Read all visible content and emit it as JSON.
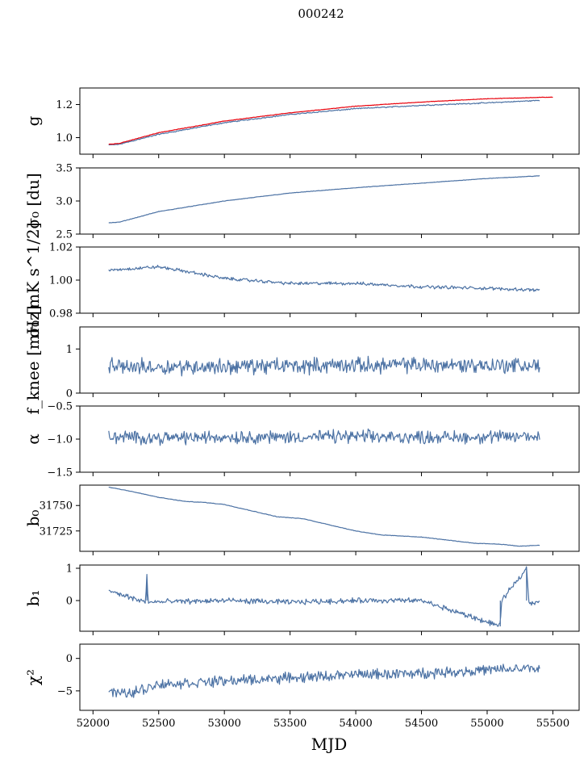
{
  "figure": {
    "title": "000242",
    "xlabel": "MJD"
  },
  "colors": {
    "blue": "#4c72a4",
    "red": "#e8000b"
  },
  "chart_data": [
    {
      "type": "line",
      "ylabel": "g",
      "ylim": [
        0.9,
        1.3
      ],
      "xlim": [
        51900,
        55700
      ],
      "yticks": [
        1.0,
        1.2
      ],
      "ytick_labels": [
        "1.0",
        "1.2"
      ],
      "xticks": [
        52000,
        52500,
        53000,
        53500,
        54000,
        54500,
        55000,
        55500
      ],
      "series": [
        {
          "color": "#4c72a4",
          "x": [
            52120,
            52200,
            52500,
            53000,
            53500,
            54000,
            54500,
            55000,
            55400
          ],
          "y": [
            0.955,
            0.96,
            1.02,
            1.09,
            1.14,
            1.175,
            1.195,
            1.21,
            1.225
          ]
        },
        {
          "color": "#e8000b",
          "x": [
            52120,
            52200,
            52500,
            53000,
            53500,
            54000,
            54500,
            55000,
            55500
          ],
          "y": [
            0.96,
            0.965,
            1.03,
            1.1,
            1.15,
            1.19,
            1.215,
            1.235,
            1.245
          ]
        }
      ]
    },
    {
      "type": "line",
      "ylabel": "σ₀ [du]",
      "ylim": [
        2.5,
        3.5
      ],
      "xlim": [
        51900,
        55700
      ],
      "yticks": [
        2.5,
        3.0,
        3.5
      ],
      "ytick_labels": [
        "2.5",
        "3.0",
        "3.5"
      ],
      "xticks": [
        52000,
        52500,
        53000,
        53500,
        54000,
        54500,
        55000,
        55500
      ],
      "series": [
        {
          "color": "#4c72a4",
          "x": [
            52120,
            52200,
            52500,
            53000,
            53500,
            54000,
            54500,
            55000,
            55400
          ],
          "y": [
            2.67,
            2.68,
            2.84,
            3.0,
            3.12,
            3.2,
            3.27,
            3.34,
            3.38
          ]
        }
      ]
    },
    {
      "type": "line",
      "ylabel": "σ₀ [mK s^1/2]",
      "ylim": [
        0.98,
        1.02
      ],
      "xlim": [
        51900,
        55700
      ],
      "yticks": [
        0.98,
        1.0,
        1.02
      ],
      "ytick_labels": [
        "0.98",
        "1.00",
        "1.02"
      ],
      "xticks": [
        52000,
        52500,
        53000,
        53500,
        54000,
        54500,
        55000,
        55500
      ],
      "series": [
        {
          "color": "#4c72a4",
          "x": [
            52120,
            52500,
            52800,
            53000,
            53500,
            54000,
            54500,
            55000,
            55400
          ],
          "y": [
            1.006,
            1.008,
            1.004,
            1.001,
            0.998,
            0.998,
            0.996,
            0.995,
            0.994
          ]
        }
      ]
    },
    {
      "type": "line",
      "ylabel": "f_knee [mHz]",
      "ylim": [
        0,
        1.5
      ],
      "xlim": [
        51900,
        55700
      ],
      "yticks": [
        0,
        1
      ],
      "ytick_labels": [
        "0",
        "1"
      ],
      "xticks": [
        52000,
        52500,
        53000,
        53500,
        54000,
        54500,
        55000,
        55500
      ],
      "series": [
        {
          "color": "#4c72a4",
          "x": [
            52120,
            52500,
            53000,
            53500,
            54000,
            54500,
            55000,
            55400
          ],
          "y": [
            0.6,
            0.6,
            0.6,
            0.62,
            0.63,
            0.64,
            0.63,
            0.62
          ]
        }
      ]
    },
    {
      "type": "line",
      "ylabel": "α",
      "ylim": [
        -1.5,
        -0.5
      ],
      "xlim": [
        51900,
        55700
      ],
      "yticks": [
        -1.5,
        -1.0,
        -0.5
      ],
      "ytick_labels": [
        "−1.5",
        "−1.0",
        "−0.5"
      ],
      "xticks": [
        52000,
        52500,
        53000,
        53500,
        54000,
        54500,
        55000,
        55500
      ],
      "series": [
        {
          "color": "#4c72a4",
          "x": [
            52120,
            52500,
            53000,
            53500,
            54000,
            54500,
            55000,
            55400
          ],
          "y": [
            -0.97,
            -0.98,
            -0.97,
            -0.97,
            -0.96,
            -0.97,
            -0.97,
            -0.96
          ]
        }
      ]
    },
    {
      "type": "line",
      "ylabel": "b₀",
      "ylim": [
        31705,
        31770
      ],
      "xlim": [
        51900,
        55700
      ],
      "yticks": [
        31725,
        31750
      ],
      "ytick_labels": [
        "31725",
        "31750"
      ],
      "xticks": [
        52000,
        52500,
        53000,
        53500,
        54000,
        54500,
        55000,
        55500
      ],
      "series": [
        {
          "color": "#4c72a4",
          "x": [
            52120,
            52250,
            52500,
            52700,
            52850,
            53000,
            53200,
            53400,
            53600,
            53800,
            54000,
            54200,
            54500,
            54700,
            54900,
            55100,
            55250,
            55400
          ],
          "y": [
            31768,
            31765,
            31758,
            31754,
            31753,
            31751,
            31745,
            31739,
            31737,
            31731,
            31725,
            31721,
            31719,
            31716,
            31713,
            31712,
            31710,
            31711
          ]
        }
      ]
    },
    {
      "type": "line",
      "ylabel": "b₁",
      "ylim": [
        -0.95,
        1.1
      ],
      "xlim": [
        51900,
        55700
      ],
      "yticks": [
        0,
        1
      ],
      "ytick_labels": [
        "0",
        "1"
      ],
      "xticks": [
        52000,
        52500,
        53000,
        53500,
        54000,
        54500,
        55000,
        55500
      ],
      "series": [
        {
          "color": "#4c72a4",
          "x": [
            52120,
            52400,
            52410,
            52420,
            53000,
            53500,
            54000,
            54500,
            55100,
            55110,
            55300,
            55320,
            55400
          ],
          "y": [
            0.3,
            -0.05,
            0.8,
            -0.05,
            0.0,
            -0.05,
            0.0,
            0.0,
            -0.8,
            0.0,
            1.0,
            -0.1,
            0.0
          ]
        }
      ]
    },
    {
      "type": "line",
      "ylabel": "χ²",
      "ylim": [
        -8,
        2.2
      ],
      "xlim": [
        51900,
        55700
      ],
      "yticks": [
        -5,
        0
      ],
      "ytick_labels": [
        "−5",
        "0"
      ],
      "xticks": [
        52000,
        52500,
        53000,
        53500,
        54000,
        54500,
        55000,
        55500
      ],
      "xtick_labels": [
        "52000",
        "52500",
        "53000",
        "53500",
        "54000",
        "54500",
        "55000",
        "55500"
      ],
      "series": [
        {
          "color": "#4c72a4",
          "x": [
            52120,
            52250,
            52500,
            53000,
            53500,
            54000,
            54500,
            55000,
            55400
          ],
          "y": [
            -5,
            -5.5,
            -4,
            -3.5,
            -3,
            -2.5,
            -2.3,
            -1.8,
            -1.5
          ]
        }
      ]
    }
  ]
}
